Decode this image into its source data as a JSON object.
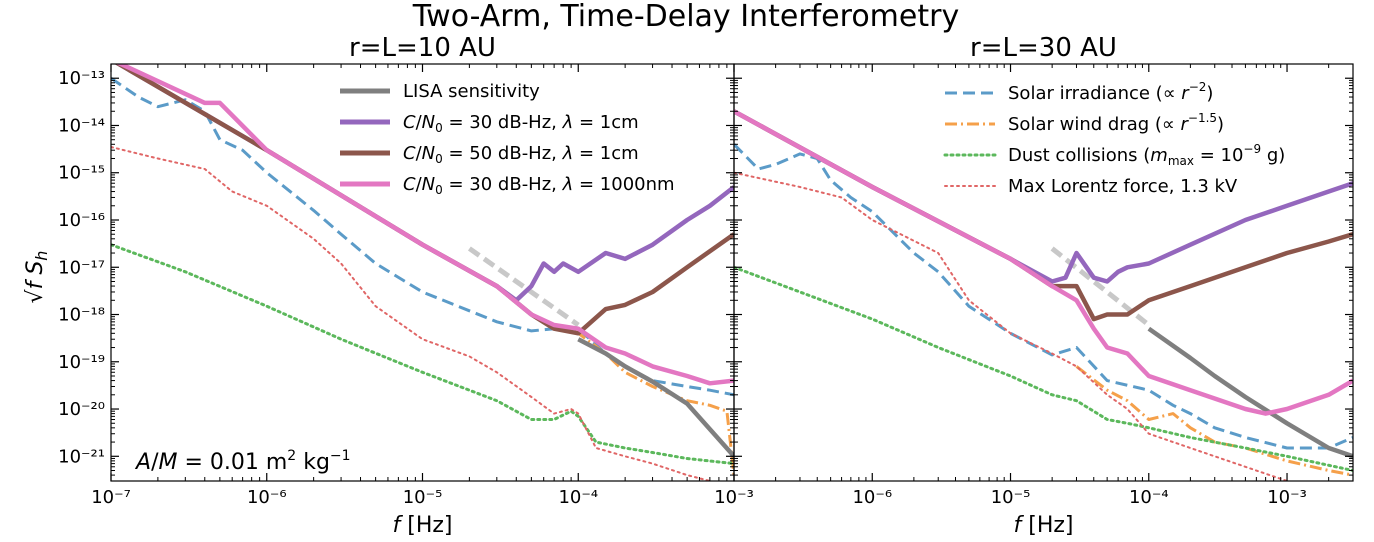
{
  "figure": {
    "suptitle": "Two-Arm, Time-Delay Interferometry",
    "ylabel": "√f S_h",
    "annotation": "A/M = 0.01 m² kg⁻¹"
  },
  "chart_data": [
    {
      "type": "line",
      "title": "r=L=10 AU",
      "xlabel": "f [Hz]",
      "xscale": "log",
      "yscale": "log",
      "xlim": [
        1e-07,
        0.001
      ],
      "ylim": [
        3e-22,
        2e-13
      ],
      "xticks": [
        {
          "value": 1e-07,
          "label": "10⁻⁷"
        },
        {
          "value": 1e-06,
          "label": "10⁻⁶"
        },
        {
          "value": 1e-05,
          "label": "10⁻⁵"
        },
        {
          "value": 0.0001,
          "label": "10⁻⁴"
        },
        {
          "value": 0.001,
          "label": "10⁻³"
        }
      ],
      "yticks": [
        {
          "value": 1e-21,
          "label": "10⁻²¹"
        },
        {
          "value": 1e-20,
          "label": "10⁻²⁰"
        },
        {
          "value": 1e-19,
          "label": "10⁻¹⁹"
        },
        {
          "value": 1e-18,
          "label": "10⁻¹⁸"
        },
        {
          "value": 1e-17,
          "label": "10⁻¹⁷"
        },
        {
          "value": 1e-16,
          "label": "10⁻¹⁶"
        },
        {
          "value": 1e-15,
          "label": "10⁻¹⁵"
        },
        {
          "value": 1e-14,
          "label": "10⁻¹⁴"
        },
        {
          "value": 1e-13,
          "label": "10⁻¹³"
        }
      ],
      "legend": {
        "location": "top-center",
        "entries": [
          "LISA sensitivity",
          "C/N₀ = 30 dB-Hz, λ = 1cm",
          "C/N₀ = 50 dB-Hz, λ = 1cm",
          "C/N₀ = 30 dB-Hz, λ = 1000nm"
        ]
      },
      "series": [
        {
          "key": "lisa_reference",
          "color": "#c8c8c8",
          "style": "dashed",
          "x": [
            2e-05,
            0.0001
          ],
          "y": [
            2.5e-17,
            6e-19
          ]
        },
        {
          "key": "solar_irradiance",
          "color": "#5b9bc8",
          "style": "dashed",
          "x": [
            1e-07,
            1.5e-07,
            2e-07,
            3e-07,
            4e-07,
            5e-07,
            7e-07,
            1e-06,
            2e-06,
            3e-06,
            5e-06,
            1e-05,
            2e-05,
            3e-05,
            5e-05,
            7e-05,
            0.0001,
            0.00015,
            0.0002,
            0.0003,
            0.0005,
            0.0007,
            0.001
          ],
          "y": [
            1e-13,
            4e-14,
            2.5e-14,
            3.5e-14,
            2e-14,
            5e-15,
            3e-15,
            1e-15,
            1.6e-16,
            5e-17,
            1.2e-17,
            3e-18,
            1.2e-18,
            7e-19,
            4.5e-19,
            5e-19,
            5e-19,
            1.5e-19,
            8e-20,
            4e-20,
            3e-20,
            2.5e-20,
            2e-20
          ]
        },
        {
          "key": "solar_wind_drag",
          "color": "#f5a04a",
          "style": "dashdot",
          "x": [
            7e-05,
            0.0001,
            0.00015,
            0.0002,
            0.0003,
            0.0005,
            0.0007,
            0.0009,
            0.001
          ],
          "y": [
            6e-19,
            4e-19,
            1.5e-19,
            6e-20,
            3e-20,
            1.5e-20,
            1.2e-20,
            9e-21,
            4e-22
          ]
        },
        {
          "key": "dust_collisions",
          "color": "#5cb85c",
          "style": "dotted",
          "x": [
            1e-07,
            3e-07,
            1e-06,
            3e-06,
            1e-05,
            2e-05,
            3e-05,
            5e-05,
            7e-05,
            9e-05,
            0.0001,
            0.00013,
            0.0002,
            0.0003,
            0.0005,
            0.001
          ],
          "y": [
            3e-17,
            8e-18,
            1.5e-18,
            3e-19,
            6e-20,
            2.5e-20,
            1.5e-20,
            6e-21,
            6e-21,
            9e-21,
            7e-21,
            2e-21,
            1.5e-21,
            1.2e-21,
            9e-22,
            7e-22
          ]
        },
        {
          "key": "max_lorentz",
          "color": "#e06666",
          "style": "dotted",
          "x": [
            1e-07,
            2e-07,
            4e-07,
            6e-07,
            1e-06,
            2e-06,
            3e-06,
            5e-06,
            1e-05,
            2e-05,
            3e-05,
            5e-05,
            7e-05,
            9e-05,
            0.0001,
            0.00013,
            0.0002,
            0.0003,
            0.0005,
            0.0007
          ],
          "y": [
            3.5e-15,
            2e-15,
            1.2e-15,
            4e-16,
            2e-16,
            4e-17,
            1.2e-17,
            1.5e-18,
            3e-19,
            1.3e-19,
            6e-20,
            1.8e-20,
            8e-21,
            1e-20,
            8e-21,
            1.5e-21,
            1e-21,
            7e-22,
            4e-22,
            3e-22
          ]
        },
        {
          "key": "lisa_sensitivity",
          "color": "#7f7f7f",
          "style": "solid",
          "x": [
            0.0001,
            0.00015,
            0.0002,
            0.0003,
            0.0005,
            0.001
          ],
          "y": [
            3e-19,
            1.5e-19,
            8e-20,
            3.8e-20,
            1.3e-20,
            1e-21
          ]
        },
        {
          "key": "cn30_1cm",
          "color": "#9467bd",
          "style": "solid",
          "x": [
            1e-07,
            1e-06,
            1e-05,
            3e-05,
            4e-05,
            5e-05,
            6e-05,
            7e-05,
            8e-05,
            0.0001,
            0.00015,
            0.0002,
            0.0003,
            0.0005,
            0.0007,
            0.001
          ],
          "y": [
            2.5e-13,
            3e-15,
            3e-17,
            4e-18,
            2e-18,
            4e-18,
            1.2e-17,
            8e-18,
            1.2e-17,
            8e-18,
            2e-17,
            1.5e-17,
            3e-17,
            1e-16,
            2e-16,
            5e-16
          ]
        },
        {
          "key": "cn50_1cm",
          "color": "#8c564b",
          "style": "solid",
          "x": [
            1e-07,
            1e-06,
            1e-05,
            3e-05,
            5e-05,
            7e-05,
            0.0001,
            0.00015,
            0.0002,
            0.0003,
            0.0005,
            0.001
          ],
          "y": [
            2.5e-13,
            3e-15,
            3e-17,
            4e-18,
            1e-18,
            5e-19,
            4e-19,
            1.3e-18,
            1.6e-18,
            3e-18,
            1e-17,
            5e-17
          ]
        },
        {
          "key": "cn30_1000nm",
          "color": "#e377c2",
          "style": "solid",
          "x": [
            1e-07,
            4e-07,
            5e-07,
            1e-06,
            1e-05,
            3e-05,
            5e-05,
            7e-05,
            0.0001,
            0.00015,
            0.0002,
            0.0003,
            0.0005,
            0.0007,
            0.001
          ],
          "y": [
            2.5e-13,
            3e-14,
            3e-14,
            3e-15,
            3e-17,
            4e-18,
            1e-18,
            6e-19,
            5e-19,
            2e-19,
            1.5e-19,
            8e-20,
            5e-20,
            3.5e-20,
            4e-20
          ]
        }
      ]
    },
    {
      "type": "line",
      "title": "r=L=30 AU",
      "xlabel": "f [Hz]",
      "xscale": "log",
      "yscale": "log",
      "xlim": [
        1e-07,
        0.003
      ],
      "ylim": [
        3e-22,
        2e-13
      ],
      "xticks": [
        {
          "value": 1e-06,
          "label": "10⁻⁶"
        },
        {
          "value": 1e-05,
          "label": "10⁻⁵"
        },
        {
          "value": 0.0001,
          "label": "10⁻⁴"
        },
        {
          "value": 0.001,
          "label": "10⁻³"
        }
      ],
      "legend": {
        "location": "top-right",
        "entries": [
          "Solar irradiance (∝ r⁻²)",
          "Solar wind drag (∝ r⁻¹·⁵)",
          "Dust collisions (m_max = 10⁻⁹ g)",
          "Max Lorentz force, 1.3 kV"
        ]
      },
      "series": [
        {
          "key": "lisa_reference",
          "color": "#c8c8c8",
          "style": "dashed",
          "x": [
            2e-05,
            0.0001
          ],
          "y": [
            2.5e-17,
            6e-19
          ]
        },
        {
          "key": "solar_irradiance",
          "color": "#5b9bc8",
          "style": "dashed",
          "x": [
            1e-07,
            1.5e-07,
            2e-07,
            3e-07,
            4e-07,
            5e-07,
            7e-07,
            1e-06,
            2e-06,
            3e-06,
            5e-06,
            1e-05,
            2e-05,
            3e-05,
            5e-05,
            0.0001,
            0.00015,
            0.0002,
            0.0003,
            0.0005,
            0.001,
            0.002,
            0.003
          ],
          "y": [
            4e-15,
            1.2e-15,
            1.5e-15,
            2.5e-15,
            2e-15,
            7e-16,
            3e-16,
            1.5e-16,
            2e-17,
            8e-18,
            1.5e-18,
            4e-19,
            1.4e-19,
            2e-19,
            4e-20,
            2.5e-20,
            1.2e-20,
            8e-21,
            4e-21,
            2.5e-21,
            1.5e-21,
            1.5e-21,
            2.5e-21
          ]
        },
        {
          "key": "solar_wind_drag",
          "color": "#f5a04a",
          "style": "dashdot",
          "x": [
            3e-05,
            5e-05,
            7e-05,
            0.0001,
            0.00015,
            0.0002,
            0.0003,
            0.0005,
            0.001,
            0.002,
            0.003
          ],
          "y": [
            8e-20,
            2.5e-20,
            1.5e-20,
            6e-21,
            8e-21,
            4e-21,
            2e-21,
            1.5e-21,
            8e-22,
            5e-22,
            4e-22
          ]
        },
        {
          "key": "dust_collisions",
          "color": "#5cb85c",
          "style": "dotted",
          "x": [
            1e-07,
            3e-07,
            1e-06,
            3e-06,
            1e-05,
            2e-05,
            3e-05,
            5e-05,
            7e-05,
            0.0001,
            0.0002,
            0.0005,
            0.001,
            0.003
          ],
          "y": [
            1e-17,
            3e-18,
            8e-19,
            2e-19,
            5e-20,
            2e-20,
            1.5e-20,
            6e-21,
            5e-21,
            4e-21,
            2.5e-21,
            1.5e-21,
            1e-21,
            5e-22
          ]
        },
        {
          "key": "max_lorentz",
          "color": "#e06666",
          "style": "dotted",
          "x": [
            1e-07,
            3e-07,
            6e-07,
            1e-06,
            3e-06,
            5e-06,
            1e-05,
            2e-05,
            3e-05,
            5e-05,
            7e-05,
            0.0001,
            0.0002,
            0.0005,
            0.001
          ],
          "y": [
            1e-15,
            5e-16,
            3e-16,
            1e-16,
            2e-17,
            2e-18,
            4e-19,
            1.5e-19,
            8e-20,
            2e-20,
            1e-20,
            3e-21,
            1.5e-21,
            6e-22,
            3e-22
          ]
        },
        {
          "key": "lisa_sensitivity",
          "color": "#7f7f7f",
          "style": "solid",
          "x": [
            0.0001,
            0.0002,
            0.0003,
            0.0005,
            0.001,
            0.002,
            0.003
          ],
          "y": [
            5e-19,
            1.2e-19,
            5e-20,
            1.8e-20,
            5e-21,
            1.5e-21,
            1e-21
          ]
        },
        {
          "key": "cn30_1cm",
          "color": "#9467bd",
          "style": "solid",
          "x": [
            1e-07,
            1e-06,
            1e-05,
            2e-05,
            2.5e-05,
            3e-05,
            4e-05,
            5e-05,
            6e-05,
            7e-05,
            0.0001,
            0.0002,
            0.0005,
            0.001,
            0.002,
            0.003
          ],
          "y": [
            2e-14,
            5e-16,
            1.5e-17,
            5e-18,
            6e-18,
            2e-17,
            6e-18,
            5e-18,
            8e-18,
            1e-17,
            1.2e-17,
            3e-17,
            1e-16,
            2e-16,
            4e-16,
            6e-16
          ]
        },
        {
          "key": "cn50_1cm",
          "color": "#8c564b",
          "style": "solid",
          "x": [
            1e-07,
            1e-06,
            1e-05,
            2e-05,
            3e-05,
            4e-05,
            5e-05,
            7e-05,
            0.0001,
            0.0002,
            0.0005,
            0.001,
            0.002,
            0.003
          ],
          "y": [
            2e-14,
            5e-16,
            1.5e-17,
            4e-18,
            4e-18,
            8e-19,
            1e-18,
            1e-18,
            2e-18,
            4e-18,
            1e-17,
            2e-17,
            3.5e-17,
            5e-17
          ]
        },
        {
          "key": "cn30_1000nm",
          "color": "#e377c2",
          "style": "solid",
          "x": [
            1e-07,
            1e-06,
            1e-05,
            2e-05,
            3e-05,
            4e-05,
            5e-05,
            7e-05,
            0.0001,
            0.0002,
            0.0005,
            0.0007,
            0.001,
            0.002,
            0.003
          ],
          "y": [
            2e-14,
            5e-16,
            1.5e-17,
            4e-18,
            2e-18,
            5e-19,
            2e-19,
            1.5e-19,
            5e-20,
            2.5e-20,
            1e-20,
            8e-21,
            1e-20,
            2e-20,
            4e-20
          ]
        }
      ]
    }
  ]
}
